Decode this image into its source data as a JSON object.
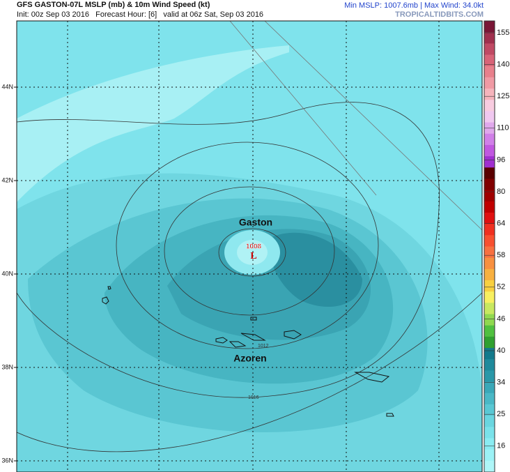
{
  "header": {
    "title": "GFS GASTON-07L MSLP (mb) & 10m Wind Speed (kt)",
    "subtitle": "Init: 00z Sep 03 2016   Forecast Hour: [6]   valid at 06z Sat, Sep 03 2016",
    "stats": "Min MSLP: 1007.6mb | Max Wind: 34.0kt",
    "site": "TROPICALTIDBITS.COM"
  },
  "map": {
    "lat_labels": [
      "44N",
      "42N",
      "40N",
      "38N",
      "36N"
    ],
    "storm": "Gaston",
    "islands": "Azoren",
    "pressure": "1008",
    "low": "L",
    "contour_labels": [
      "1012",
      "1016"
    ]
  },
  "colorbar": {
    "ticks": [
      155,
      140,
      125,
      110,
      96,
      80,
      64,
      58,
      52,
      46,
      40,
      34,
      25,
      16
    ]
  }
}
